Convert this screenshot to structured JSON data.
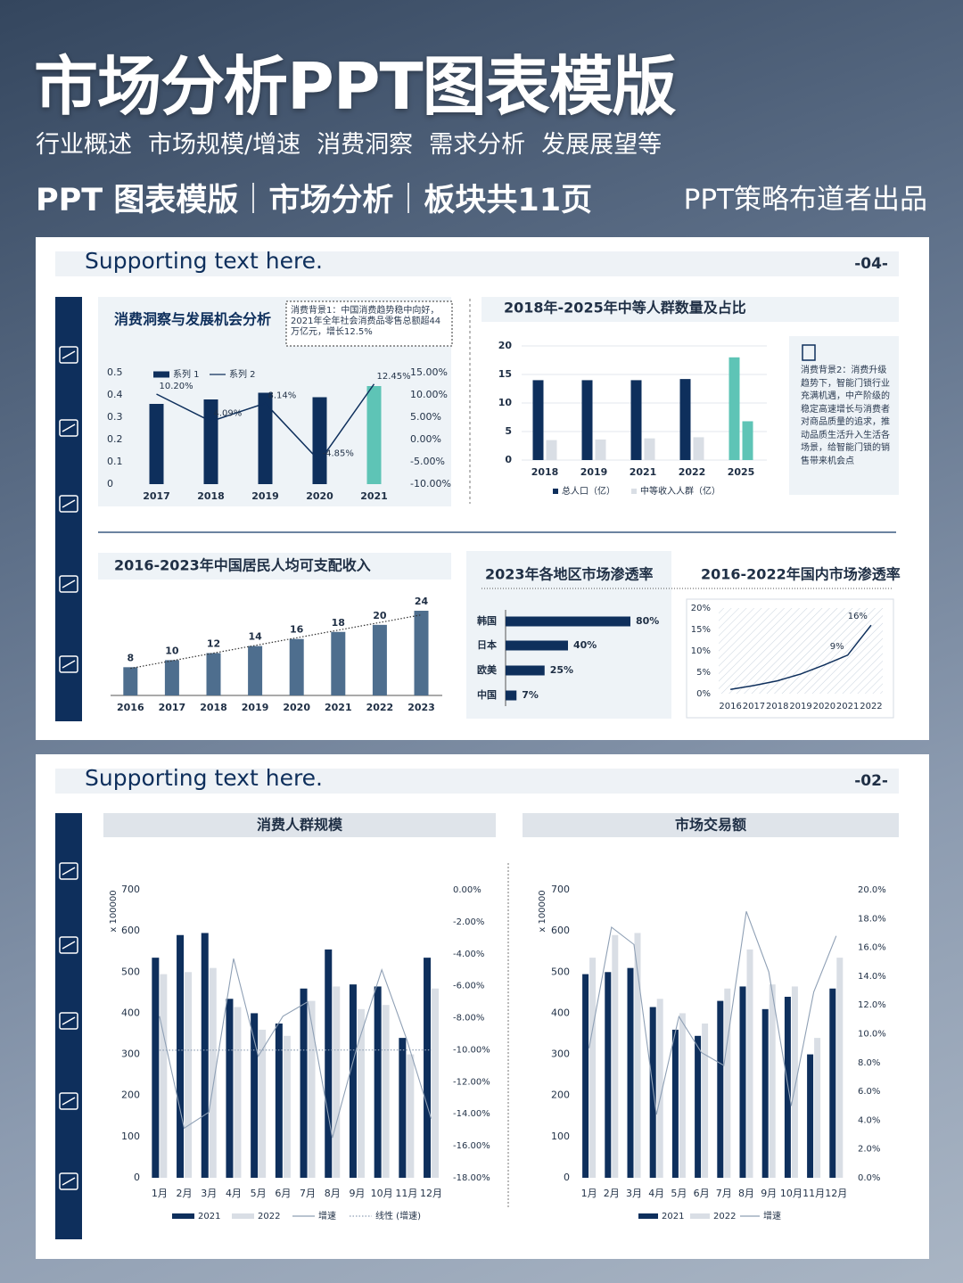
{
  "header": {
    "title": "市场分析PPT图表模版",
    "subtitle": [
      "行业概述",
      "市场规模/增速",
      "消费洞察",
      "需求分析",
      "发展展望等"
    ],
    "tagline": [
      "PPT 图表模版",
      "市场分析",
      "板块共11页"
    ],
    "author": "PPT策略布道者出品"
  },
  "pages": [
    {
      "heading": "Supporting text here.",
      "number": "-04-"
    },
    {
      "heading": "Supporting text here.",
      "number": "-02-"
    }
  ],
  "chart_data": [
    {
      "type": "combo",
      "title": "消费洞察与发展机会分析",
      "annotation": "消费背景1：中国消费趋势稳中向好，2021年全年社会消费品零售总额超44万亿元，增长12.5%",
      "categories": [
        "2017",
        "2018",
        "2019",
        "2020",
        "2021"
      ],
      "series": [
        {
          "name": "系列 1",
          "color": "#0e2f5c",
          "colors": [
            "#0e2f5c",
            "#0e2f5c",
            "#0e2f5c",
            "#0e2f5c",
            "#5ec4b6"
          ],
          "values": [
            0.36,
            0.38,
            0.41,
            0.39,
            0.44
          ]
        },
        {
          "name": "系列 2",
          "color": "#0e2f5c",
          "axis": "y2",
          "values": [
            10.2,
            4.09,
            8.14,
            -4.85,
            12.45
          ],
          "value_labels": [
            "10.20%",
            "4.09%",
            "8.14%",
            "-4.85%",
            "12.45%"
          ]
        }
      ],
      "ylim": [
        0,
        0.5
      ],
      "yticks": [
        0,
        0.1,
        0.2,
        0.3,
        0.4,
        0.5
      ],
      "y2lim": [
        -10,
        15
      ],
      "y2ticks": [
        {
          "value": -10,
          "label": "-10.00%"
        },
        {
          "value": -5,
          "label": "-5.00%"
        },
        {
          "value": 0,
          "label": "0.00%"
        },
        {
          "value": 5,
          "label": "5.00%"
        },
        {
          "value": 10,
          "label": "10.00%"
        },
        {
          "value": 15,
          "label": "15.00%"
        }
      ]
    },
    {
      "type": "bar",
      "title": "2018年-2025年中等人群数量及占比",
      "annotation": "消费背景2：消费升级趋势下，智能门锁行业充满机遇，中产阶级的稳定高速增长与消费者对商品质量的追求，推动品质生活升入生活各场景，给智能门锁的销售带来机会点",
      "categories": [
        "2018",
        "2019",
        "2021",
        "2022",
        "2025"
      ],
      "series": [
        {
          "name": "总人口（亿）",
          "color": "#0e2f5c",
          "colors": [
            "#0e2f5c",
            "#0e2f5c",
            "#0e2f5c",
            "#0e2f5c",
            "#5ec4b6"
          ],
          "values": [
            14,
            14,
            14,
            14.2,
            18
          ]
        },
        {
          "name": "中等收入人群（亿）",
          "color": "#d9dee5",
          "colors": [
            "#d9dee5",
            "#d9dee5",
            "#d9dee5",
            "#d9dee5",
            "#5ec4b6"
          ],
          "values": [
            3.5,
            3.6,
            3.8,
            4,
            6.8
          ]
        }
      ],
      "ylim": [
        0,
        20
      ],
      "yticks": [
        0,
        5,
        10,
        15,
        20
      ],
      "grid": true
    },
    {
      "type": "bar",
      "title": "2016-2023年中国居民人均可支配收入",
      "categories": [
        "2016",
        "2017",
        "2018",
        "2019",
        "2020",
        "2021",
        "2022",
        "2023"
      ],
      "values": [
        8,
        10,
        12,
        14,
        16,
        18,
        20,
        24
      ],
      "color": "#4e6e8e",
      "data_labels": true,
      "trendline": true
    },
    {
      "type": "barh",
      "title": "2023年各地区市场渗透率",
      "categories": [
        "韩国",
        "日本",
        "欧美",
        "中国"
      ],
      "values": [
        80,
        40,
        25,
        7
      ],
      "value_labels": [
        "80%",
        "40%",
        "25%",
        "7%"
      ],
      "color": "#0e2f5c"
    },
    {
      "type": "line",
      "title": "2016-2022年国内市场渗透率",
      "categories": [
        "2016",
        "2017",
        "2018",
        "2019",
        "2020",
        "2021",
        "2022"
      ],
      "values": [
        1,
        1.9,
        3,
        4.6,
        6.7,
        9,
        16
      ],
      "value_labels": [
        null,
        null,
        null,
        null,
        null,
        "9%",
        "16%"
      ],
      "color": "#0e2f5c",
      "ylim": [
        0,
        20
      ],
      "yticks": [
        {
          "value": 0,
          "label": "0%"
        },
        {
          "value": 5,
          "label": "5%"
        },
        {
          "value": 10,
          "label": "10%"
        },
        {
          "value": 15,
          "label": "15%"
        },
        {
          "value": 20,
          "label": "20%"
        }
      ]
    },
    {
      "type": "combo",
      "title": "消费人群规模",
      "ylabel": "x 100000",
      "categories": [
        "1月",
        "2月",
        "3月",
        "4月",
        "5月",
        "6月",
        "7月",
        "8月",
        "9月",
        "10月",
        "11月",
        "12月"
      ],
      "series": [
        {
          "name": "2021",
          "color": "#0e2f5c",
          "values": [
            535,
            590,
            595,
            435,
            400,
            375,
            460,
            555,
            470,
            465,
            340,
            535
          ]
        },
        {
          "name": "2022",
          "color": "#d9dee5",
          "values": [
            495,
            500,
            510,
            415,
            360,
            345,
            430,
            465,
            410,
            420,
            300,
            460
          ]
        },
        {
          "name": "增速",
          "color": "#8fa0b5",
          "axis": "y2",
          "values": [
            -7.9,
            -14.9,
            -13.9,
            -4.3,
            -10.4,
            -7.9,
            -7.0,
            -15.5,
            -9.8,
            -5.0,
            -9.3,
            -14.3
          ]
        }
      ],
      "trendline": true,
      "trendline_name": "线性 (增速)",
      "ylim": [
        0,
        700
      ],
      "yticks": [
        0,
        100,
        200,
        300,
        400,
        500,
        600,
        700
      ],
      "y2lim": [
        -18,
        0
      ],
      "y2ticks": [
        {
          "value": 0,
          "label": "0.00%"
        },
        {
          "value": -2,
          "label": "-2.00%"
        },
        {
          "value": -4,
          "label": "-4.00%"
        },
        {
          "value": -6,
          "label": "-6.00%"
        },
        {
          "value": -8,
          "label": "-8.00%"
        },
        {
          "value": -10,
          "label": "-10.00%"
        },
        {
          "value": -12,
          "label": "-12.00%"
        },
        {
          "value": -14,
          "label": "-14.00%"
        },
        {
          "value": -16,
          "label": "-16.00%"
        },
        {
          "value": -18,
          "label": "-18.00%"
        }
      ]
    },
    {
      "type": "combo",
      "title": "市场交易额",
      "ylabel": "x 100000",
      "categories": [
        "1月",
        "2月",
        "3月",
        "4月",
        "5月",
        "6月",
        "7月",
        "8月",
        "9月",
        "10月",
        "11月",
        "12月"
      ],
      "series": [
        {
          "name": "2021",
          "color": "#0e2f5c",
          "values": [
            495,
            500,
            510,
            415,
            360,
            345,
            430,
            465,
            410,
            440,
            300,
            460
          ]
        },
        {
          "name": "2022",
          "color": "#d9dee5",
          "values": [
            535,
            590,
            595,
            435,
            400,
            375,
            460,
            555,
            470,
            465,
            340,
            535
          ]
        },
        {
          "name": "增速",
          "color": "#8fa0b5",
          "axis": "y2",
          "values": [
            9.0,
            17.4,
            16.2,
            4.4,
            11.2,
            8.7,
            7.8,
            18.5,
            14.3,
            5.0,
            12.9,
            16.8
          ]
        }
      ],
      "ylim": [
        0,
        700
      ],
      "yticks": [
        0,
        100,
        200,
        300,
        400,
        500,
        600,
        700
      ],
      "y2lim": [
        0,
        20
      ],
      "y2ticks": [
        {
          "value": 0,
          "label": "0.0%"
        },
        {
          "value": 2,
          "label": "2.0%"
        },
        {
          "value": 4,
          "label": "4.0%"
        },
        {
          "value": 6,
          "label": "6.0%"
        },
        {
          "value": 8,
          "label": "8.0%"
        },
        {
          "value": 10,
          "label": "10.0%"
        },
        {
          "value": 12,
          "label": "12.0%"
        },
        {
          "value": 14,
          "label": "14.0%"
        },
        {
          "value": 16,
          "label": "16.0%"
        },
        {
          "value": 18,
          "label": "18.0%"
        },
        {
          "value": 20,
          "label": "20.0%"
        }
      ]
    }
  ]
}
